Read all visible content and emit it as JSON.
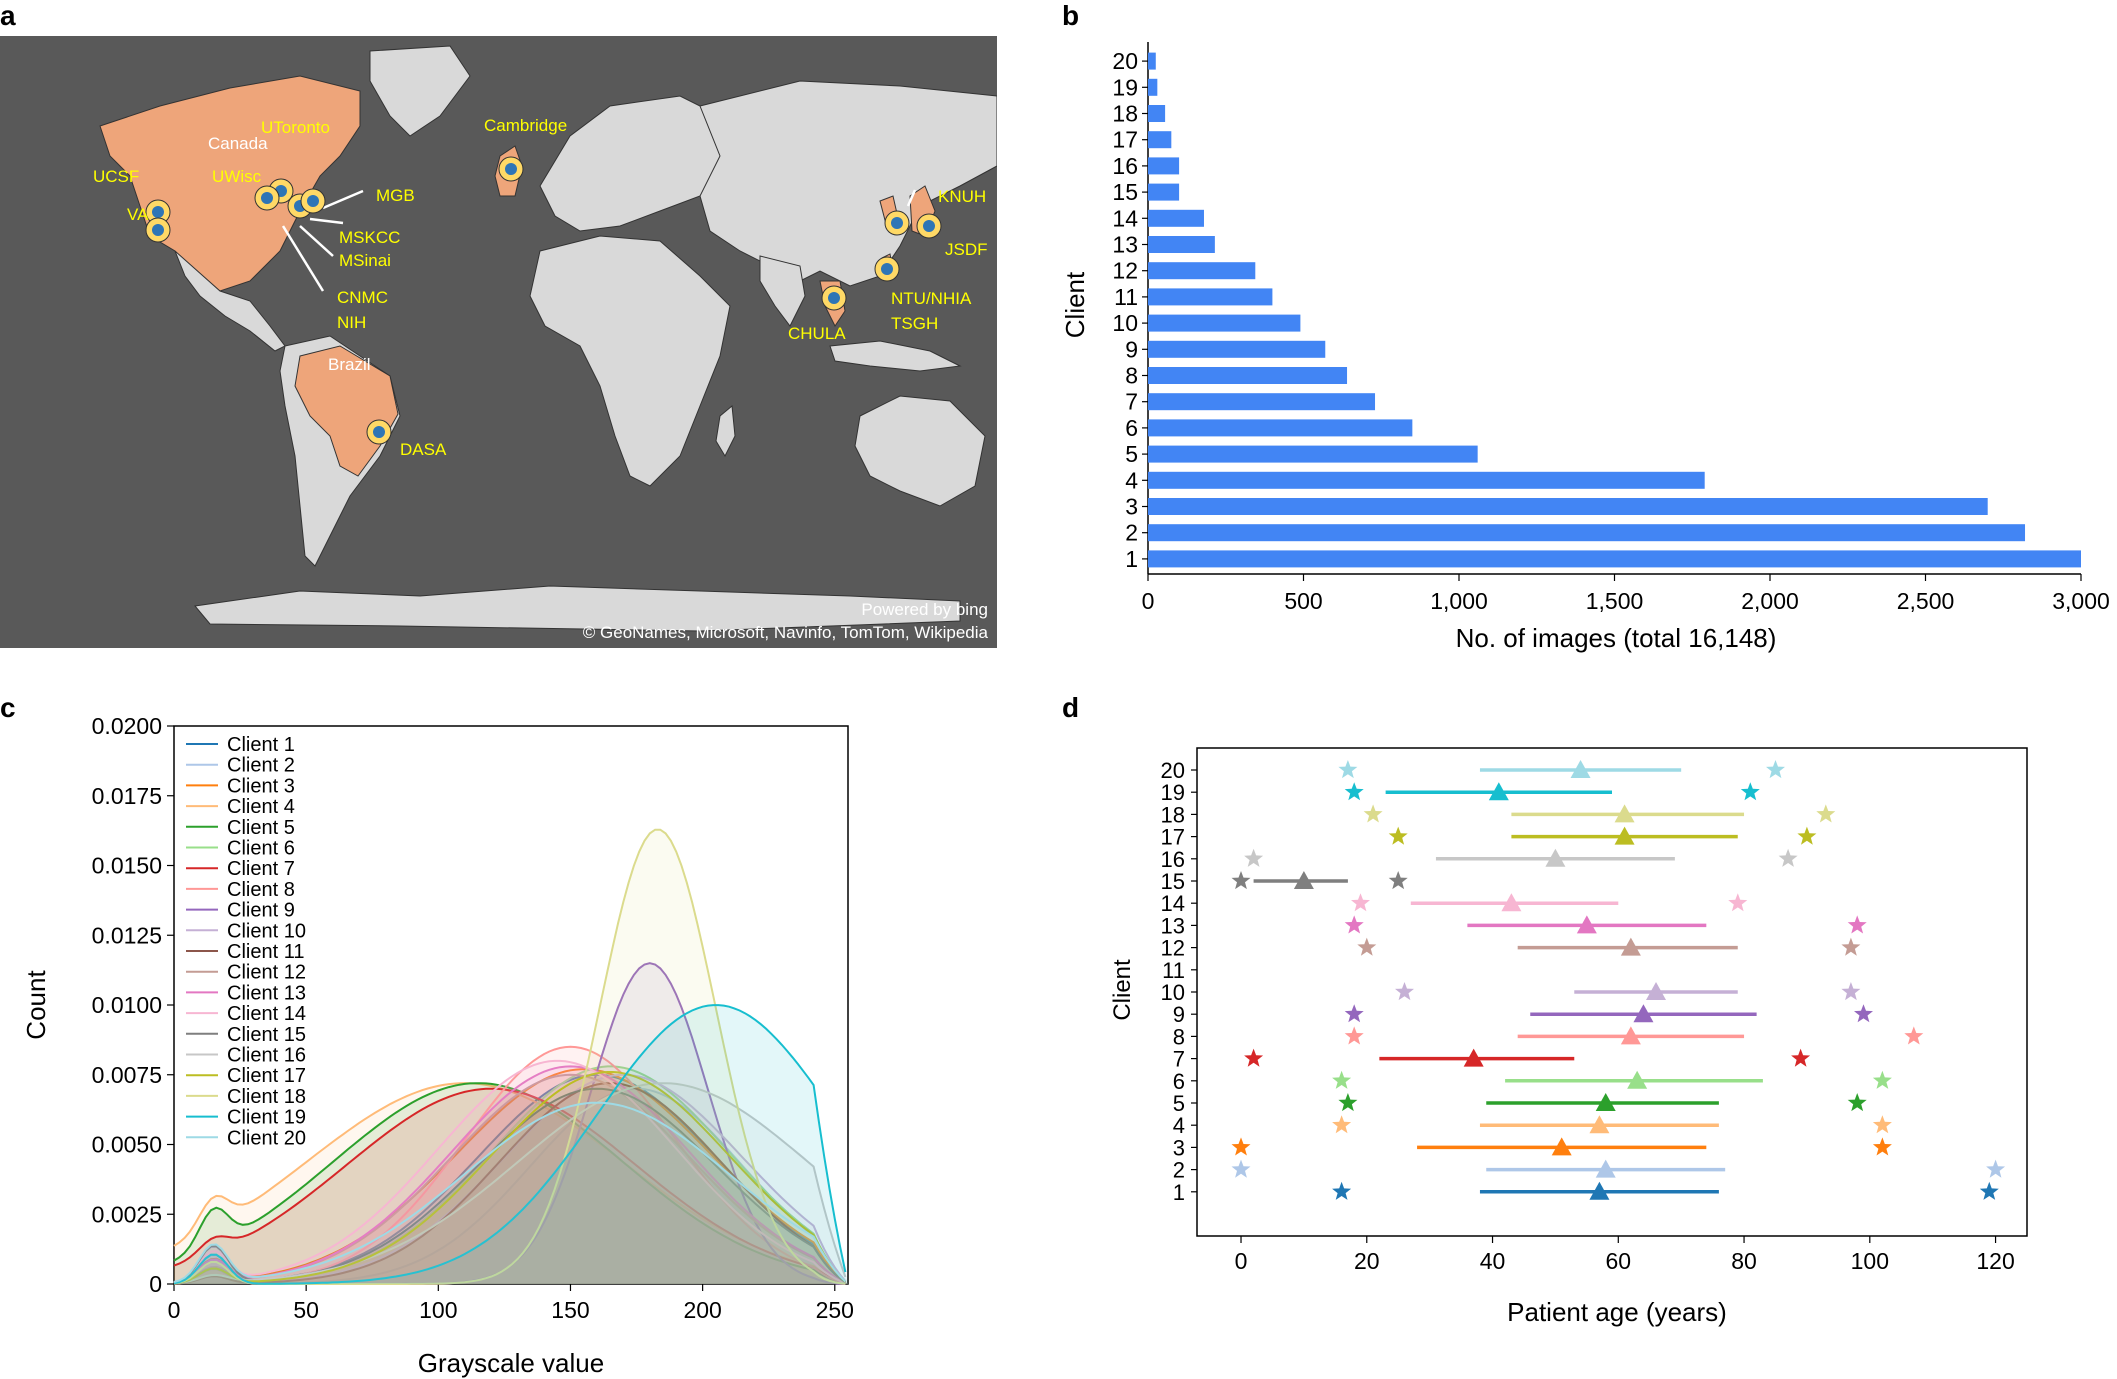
{
  "panel_labels": {
    "a": "a",
    "b": "b",
    "c": "c",
    "d": "d"
  },
  "map": {
    "powered_by": "Powered by bing",
    "copyright": "© GeoNames, Microsoft, Navinfo, TomTom, Wikipedia",
    "country_labels": [
      "Canada",
      "Brazil"
    ],
    "site_labels": [
      "UCSF",
      "VA",
      "UToronto",
      "UWisc",
      "MGB",
      "MSKCC",
      "MSinai",
      "CNMC",
      "NIH",
      "Cambridge",
      "DASA",
      "CHULA",
      "NTU/NHIA",
      "TSGH",
      "KNUH",
      "JSDF"
    ],
    "colors": {
      "ocean": "#595959",
      "land": "#d9d9d9",
      "highlight": "#eea57a",
      "label": "#ffff00",
      "pin": "#ffd966",
      "pin_inner": "#2e75b6"
    }
  },
  "chart_data": [
    {
      "type": "bar",
      "orientation": "horizontal",
      "ylabel": "Client",
      "xlabel": "No. of images (total 16,148)",
      "categories": [
        "20",
        "19",
        "18",
        "17",
        "16",
        "15",
        "14",
        "13",
        "12",
        "11",
        "10",
        "9",
        "8",
        "7",
        "6",
        "5",
        "4",
        "3",
        "2",
        "1"
      ],
      "values": [
        25,
        30,
        55,
        75,
        100,
        100,
        180,
        215,
        345,
        400,
        490,
        570,
        640,
        730,
        850,
        1060,
        1790,
        2700,
        2820,
        3000
      ],
      "xlim": [
        0,
        3000
      ],
      "xticks": [
        "0",
        "500",
        "1,000",
        "1,500",
        "2,000",
        "2,500",
        "3,000"
      ],
      "color": "#4285f4"
    },
    {
      "type": "area",
      "xlabel": "Grayscale value",
      "ylabel": "Count",
      "xlim": [
        0,
        255
      ],
      "ylim": [
        0,
        0.02
      ],
      "xticks": [
        "0",
        "50",
        "100",
        "150",
        "200",
        "250"
      ],
      "yticks": [
        "0",
        "0.0025",
        "0.0050",
        "0.0075",
        "0.0100",
        "0.0125",
        "0.0150",
        "0.0175",
        "0.0200"
      ],
      "series": [
        {
          "name": "Client 1",
          "color": "#1f77b4",
          "peak": 160,
          "height": 0.0075,
          "width": 45
        },
        {
          "name": "Client 2",
          "color": "#aec7e8",
          "peak": 175,
          "height": 0.007,
          "width": 40
        },
        {
          "name": "Client 3",
          "color": "#ff7f0e",
          "peak": 155,
          "height": 0.0077,
          "width": 48
        },
        {
          "name": "Client 4",
          "color": "#ffbb78",
          "peak": 110,
          "height": 0.0072,
          "width": 60
        },
        {
          "name": "Client 5",
          "color": "#2ca02c",
          "peak": 115,
          "height": 0.0072,
          "width": 55
        },
        {
          "name": "Client 6",
          "color": "#98df8a",
          "peak": 165,
          "height": 0.0078,
          "width": 45
        },
        {
          "name": "Client 7",
          "color": "#d62728",
          "peak": 120,
          "height": 0.007,
          "width": 55
        },
        {
          "name": "Client 8",
          "color": "#ff9896",
          "peak": 150,
          "height": 0.0085,
          "width": 40
        },
        {
          "name": "Client 9",
          "color": "#9467bd",
          "peak": 180,
          "height": 0.0115,
          "width": 22
        },
        {
          "name": "Client 10",
          "color": "#c5b0d5",
          "peak": 170,
          "height": 0.0075,
          "width": 45
        },
        {
          "name": "Client 11",
          "color": "#8c564b",
          "peak": 165,
          "height": 0.0072,
          "width": 42
        },
        {
          "name": "Client 12",
          "color": "#c49c94",
          "peak": 150,
          "height": 0.0075,
          "width": 45
        },
        {
          "name": "Client 13",
          "color": "#e377c2",
          "peak": 150,
          "height": 0.0078,
          "width": 45
        },
        {
          "name": "Client 14",
          "color": "#f7b6d2",
          "peak": 145,
          "height": 0.008,
          "width": 45
        },
        {
          "name": "Client 15",
          "color": "#7f7f7f",
          "peak": 160,
          "height": 0.007,
          "width": 45
        },
        {
          "name": "Client 16",
          "color": "#c7c7c7",
          "peak": 185,
          "height": 0.0072,
          "width": 55
        },
        {
          "name": "Client 17",
          "color": "#bcbd22",
          "peak": 165,
          "height": 0.0076,
          "width": 45
        },
        {
          "name": "Client 18",
          "color": "#dbdb8d",
          "peak": 183,
          "height": 0.0163,
          "width": 22
        },
        {
          "name": "Client 19",
          "color": "#17becf",
          "peak": 205,
          "height": 0.01,
          "width": 45
        },
        {
          "name": "Client 20",
          "color": "#9edae5",
          "peak": 160,
          "height": 0.0065,
          "width": 50
        }
      ]
    },
    {
      "type": "scatter",
      "xlabel": "Patient age (years)",
      "ylabel": "Client",
      "xlim": [
        -7,
        125
      ],
      "xticks": [
        "0",
        "20",
        "40",
        "60",
        "80",
        "100",
        "120"
      ],
      "yticks": [
        "1",
        "2",
        "3",
        "4",
        "5",
        "6",
        "7",
        "8",
        "9",
        "10",
        "11",
        "12",
        "13",
        "14",
        "15",
        "16",
        "17",
        "18",
        "19",
        "20"
      ],
      "series": [
        {
          "client": 1,
          "mean": 57,
          "lo": 38,
          "hi": 76,
          "min": 16,
          "max": 119,
          "color": "#1f77b4"
        },
        {
          "client": 2,
          "mean": 58,
          "lo": 39,
          "hi": 77,
          "min": 0,
          "max": 120,
          "color": "#aec7e8"
        },
        {
          "client": 3,
          "mean": 51,
          "lo": 28,
          "hi": 74,
          "min": 0,
          "max": 102,
          "color": "#ff7f0e"
        },
        {
          "client": 4,
          "mean": 57,
          "lo": 38,
          "hi": 76,
          "min": 16,
          "max": 102,
          "color": "#ffbb78"
        },
        {
          "client": 5,
          "mean": 58,
          "lo": 39,
          "hi": 76,
          "min": 17,
          "max": 98,
          "color": "#2ca02c"
        },
        {
          "client": 6,
          "mean": 63,
          "lo": 42,
          "hi": 83,
          "min": 16,
          "max": 102,
          "color": "#98df8a"
        },
        {
          "client": 7,
          "mean": 37,
          "lo": 22,
          "hi": 53,
          "min": 2,
          "max": 89,
          "color": "#d62728"
        },
        {
          "client": 8,
          "mean": 62,
          "lo": 44,
          "hi": 80,
          "min": 18,
          "max": 107,
          "color": "#ff9896"
        },
        {
          "client": 9,
          "mean": 64,
          "lo": 46,
          "hi": 82,
          "min": 18,
          "max": 99,
          "color": "#9467bd"
        },
        {
          "client": 10,
          "mean": 66,
          "lo": 53,
          "hi": 79,
          "min": 26,
          "max": 97,
          "color": "#c5b0d5"
        },
        {
          "client": 12,
          "mean": 62,
          "lo": 44,
          "hi": 79,
          "min": 20,
          "max": 97,
          "color": "#c49c94"
        },
        {
          "client": 13,
          "mean": 55,
          "lo": 36,
          "hi": 74,
          "min": 18,
          "max": 98,
          "color": "#e377c2"
        },
        {
          "client": 14,
          "mean": 43,
          "lo": 27,
          "hi": 60,
          "min": 19,
          "max": 79,
          "color": "#f7b6d2"
        },
        {
          "client": 15,
          "mean": 10,
          "lo": 2,
          "hi": 17,
          "min": 0,
          "max": 25,
          "color": "#7f7f7f"
        },
        {
          "client": 16,
          "mean": 50,
          "lo": 31,
          "hi": 69,
          "min": 2,
          "max": 87,
          "color": "#c7c7c7"
        },
        {
          "client": 17,
          "mean": 61,
          "lo": 43,
          "hi": 79,
          "min": 25,
          "max": 90,
          "color": "#bcbd22"
        },
        {
          "client": 18,
          "mean": 61,
          "lo": 43,
          "hi": 80,
          "min": 21,
          "max": 93,
          "color": "#dbdb8d"
        },
        {
          "client": 19,
          "mean": 41,
          "lo": 23,
          "hi": 59,
          "min": 18,
          "max": 81,
          "color": "#17becf"
        },
        {
          "client": 20,
          "mean": 54,
          "lo": 38,
          "hi": 70,
          "min": 17,
          "max": 85,
          "color": "#9edae5"
        }
      ]
    }
  ]
}
